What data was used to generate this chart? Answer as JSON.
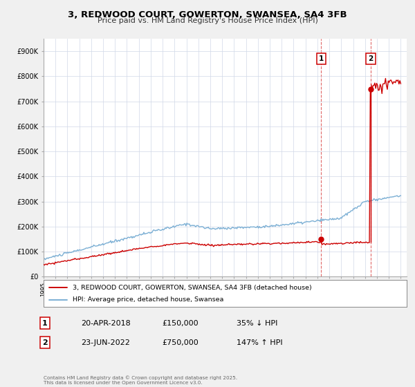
{
  "title": "3, REDWOOD COURT, GOWERTON, SWANSEA, SA4 3FB",
  "subtitle": "Price paid vs. HM Land Registry's House Price Index (HPI)",
  "y_ticks": [
    0,
    100000,
    200000,
    300000,
    400000,
    500000,
    600000,
    700000,
    800000,
    900000
  ],
  "y_tick_labels": [
    "£0",
    "£100K",
    "£200K",
    "£300K",
    "£400K",
    "£500K",
    "£600K",
    "£700K",
    "£800K",
    "£900K"
  ],
  "hpi_color": "#7bafd4",
  "price_color": "#cc0000",
  "sale1_year": 2018.3,
  "sale1_price": 150000,
  "sale2_year": 2022.48,
  "sale2_price": 750000,
  "legend_property": "3, REDWOOD COURT, GOWERTON, SWANSEA, SA4 3FB (detached house)",
  "legend_hpi": "HPI: Average price, detached house, Swansea",
  "annotation1_label": "1",
  "annotation1_date": "20-APR-2018",
  "annotation1_price": "£150,000",
  "annotation1_hpi": "35% ↓ HPI",
  "annotation2_label": "2",
  "annotation2_date": "23-JUN-2022",
  "annotation2_price": "£750,000",
  "annotation2_hpi": "147% ↑ HPI",
  "footer": "Contains HM Land Registry data © Crown copyright and database right 2025.\nThis data is licensed under the Open Government Licence v3.0.",
  "background_color": "#f0f0f0",
  "plot_bg_color": "#ffffff",
  "grid_color": "#d0d8e8"
}
